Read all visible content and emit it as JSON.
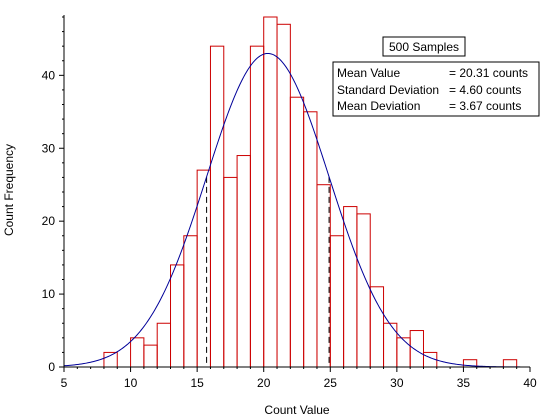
{
  "chart_data": {
    "type": "bar",
    "subtype": "histogram",
    "xlabel": "Count Value",
    "ylabel": "Count Frequency",
    "xlim": [
      5,
      40
    ],
    "ylim": [
      0,
      48
    ],
    "xticks": [
      "5",
      "10",
      "15",
      "20",
      "25",
      "30",
      "35",
      "40"
    ],
    "yticks": [
      "0",
      "10",
      "20",
      "30",
      "40"
    ],
    "bin_width": 1,
    "bins": [
      {
        "x": 8,
        "count": 2
      },
      {
        "x": 10,
        "count": 4
      },
      {
        "x": 11,
        "count": 3
      },
      {
        "x": 12,
        "count": 6
      },
      {
        "x": 13,
        "count": 14
      },
      {
        "x": 14,
        "count": 18
      },
      {
        "x": 15,
        "count": 27
      },
      {
        "x": 16,
        "count": 44
      },
      {
        "x": 17,
        "count": 26
      },
      {
        "x": 18,
        "count": 29
      },
      {
        "x": 19,
        "count": 44
      },
      {
        "x": 20,
        "count": 48
      },
      {
        "x": 21,
        "count": 47
      },
      {
        "x": 22,
        "count": 37
      },
      {
        "x": 23,
        "count": 35
      },
      {
        "x": 24,
        "count": 25
      },
      {
        "x": 25,
        "count": 18
      },
      {
        "x": 26,
        "count": 22
      },
      {
        "x": 27,
        "count": 21
      },
      {
        "x": 28,
        "count": 11
      },
      {
        "x": 29,
        "count": 6
      },
      {
        "x": 30,
        "count": 4
      },
      {
        "x": 31,
        "count": 5
      },
      {
        "x": 32,
        "count": 2
      },
      {
        "x": 35,
        "count": 1
      },
      {
        "x": 38,
        "count": 1
      }
    ],
    "fit_curve": {
      "type": "normal",
      "mean": 20.31,
      "sd": 4.6,
      "peak": 43
    },
    "markers": [
      15.71,
      24.91
    ],
    "colors": {
      "bars": "#cc0000",
      "curve": "#000099",
      "markers": "#000000"
    },
    "annotations": {
      "samples": "500 Samples",
      "stats": [
        {
          "label": "Mean Value",
          "value": "= 20.31 counts"
        },
        {
          "label": "Standard Deviation",
          "value": "= 4.60 counts"
        },
        {
          "label": "Mean Deviation",
          "value": "= 3.67 counts"
        }
      ]
    }
  }
}
